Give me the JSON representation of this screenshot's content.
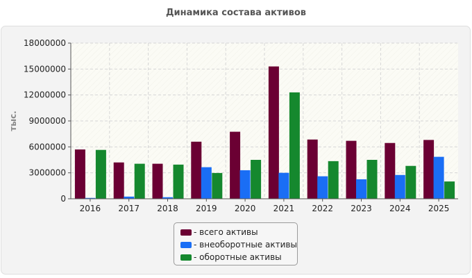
{
  "chart_data": {
    "type": "bar",
    "title": "Динамика состава активов",
    "ylabel": "тыс.",
    "xlabel": "",
    "categories": [
      "2016",
      "2017",
      "2018",
      "2019",
      "2020",
      "2021",
      "2022",
      "2023",
      "2024",
      "2025"
    ],
    "ylim": [
      0,
      18000000
    ],
    "yticks": [
      "0",
      "3000000",
      "6000000",
      "9000000",
      "12000000",
      "15000000",
      "18000000"
    ],
    "grid": true,
    "legend_position": "bottom",
    "series": [
      {
        "name": "- всего активы",
        "color": "#6b0033",
        "values": [
          5700000,
          4200000,
          4050000,
          6600000,
          7750000,
          15300000,
          6850000,
          6700000,
          6450000,
          6800000
        ]
      },
      {
        "name": "- внеоборотные активы",
        "color": "#1a6ef5",
        "values": [
          100000,
          250000,
          180000,
          3650000,
          3300000,
          3000000,
          2600000,
          2250000,
          2750000,
          4850000
        ]
      },
      {
        "name": "- оборотные активы",
        "color": "#15882e",
        "values": [
          5650000,
          4050000,
          3950000,
          2980000,
          4500000,
          12300000,
          4350000,
          4500000,
          3800000,
          2000000
        ]
      }
    ]
  }
}
